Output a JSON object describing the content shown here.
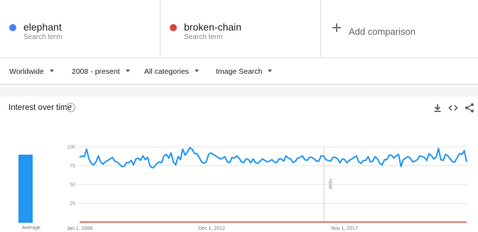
{
  "search_terms": [
    {
      "name": "elephant",
      "subtitle": "Search term",
      "color": "#4285f4"
    },
    {
      "name": "broken-chain",
      "subtitle": "Search term",
      "color": "#db4437"
    }
  ],
  "add_comparison": {
    "label": "Add comparison",
    "icon": "plus-icon"
  },
  "filters": [
    {
      "label": "Worldwide"
    },
    {
      "label": "2008 - present"
    },
    {
      "label": "All categories"
    },
    {
      "label": "Image Search"
    }
  ],
  "card": {
    "title": "Interest over time",
    "help_glyph": "?",
    "tools": [
      "download-icon",
      "embed-icon",
      "share-icon"
    ]
  },
  "average": {
    "label": "Average",
    "elephant_value": 83,
    "broken_chain_value": 0
  },
  "chart_data": {
    "type": "line",
    "title": "Interest over time",
    "x_labels": [
      "Jan 1, 2008",
      "Dec 1, 2012",
      "Nov 1, 2017"
    ],
    "y_ticks": [
      100,
      75,
      50,
      25
    ],
    "ylim": [
      0,
      100
    ],
    "grid": true,
    "annotation": "Note",
    "series": [
      {
        "name": "elephant",
        "color": "#2196f3",
        "values": [
          86,
          88,
          87,
          97,
          84,
          78,
          76,
          80,
          88,
          80,
          77,
          80,
          82,
          84,
          86,
          81,
          80,
          77,
          74,
          74,
          79,
          79,
          82,
          76,
          84,
          85,
          82,
          88,
          83,
          86,
          75,
          72,
          74,
          78,
          80,
          79,
          88,
          90,
          85,
          92,
          80,
          76,
          87,
          83,
          97,
          89,
          93,
          99,
          97,
          91,
          91,
          86,
          80,
          78,
          80,
          90,
          92,
          90,
          88,
          86,
          84,
          85,
          87,
          80,
          79,
          86,
          85,
          88,
          85,
          80,
          79,
          84,
          83,
          79,
          84,
          79,
          78,
          81,
          84,
          82,
          80,
          81,
          83,
          80,
          79,
          84,
          84,
          81,
          88,
          85,
          84,
          79,
          81,
          85,
          86,
          88,
          83,
          82,
          86,
          86,
          84,
          81,
          81,
          88,
          88,
          83,
          82,
          81,
          86,
          86,
          84,
          79,
          84,
          83,
          79,
          82,
          84,
          86,
          88,
          80,
          78,
          82,
          82,
          87,
          80,
          81,
          87,
          84,
          78,
          76,
          83,
          83,
          89,
          89,
          85,
          88,
          90,
          74,
          83,
          85,
          87,
          85,
          80,
          81,
          83,
          88,
          87,
          86,
          82,
          91,
          88,
          84,
          86,
          98,
          83,
          82,
          90,
          88,
          84,
          80,
          80,
          86,
          91,
          90,
          95,
          80
        ]
      },
      {
        "name": "broken-chain",
        "color": "#db4437",
        "values": [
          0,
          0,
          0,
          0,
          0,
          0,
          0,
          0,
          0,
          0,
          0,
          0,
          0,
          0,
          0,
          0,
          0,
          0,
          0,
          0,
          0,
          0,
          0,
          0,
          0,
          0,
          0,
          0,
          0,
          0,
          0,
          0,
          0,
          0,
          0,
          0,
          0,
          0,
          0,
          0,
          0,
          0,
          0,
          0,
          0,
          0,
          0,
          0,
          0,
          0,
          0,
          0,
          0,
          0,
          0,
          0,
          0,
          0,
          0,
          0,
          0,
          0,
          0,
          0,
          0,
          0,
          0,
          0,
          0,
          0,
          0,
          0,
          0,
          0,
          0,
          0,
          0,
          0,
          0,
          0,
          0,
          0,
          0,
          0,
          0,
          0,
          0,
          0,
          0,
          0,
          0,
          0,
          0,
          0,
          0,
          0,
          0,
          0,
          0,
          0,
          0,
          0,
          0,
          0,
          0,
          0,
          0,
          0,
          0,
          0,
          0,
          0,
          0,
          0,
          0,
          0,
          0,
          0,
          0,
          0,
          0,
          0,
          0,
          0,
          0,
          0,
          0,
          0,
          0,
          0,
          0,
          0,
          0,
          0,
          0,
          0,
          0,
          0,
          0,
          0,
          0,
          0,
          0,
          0,
          0,
          0,
          0,
          0,
          0,
          0,
          0,
          0,
          0,
          0,
          0,
          0,
          0,
          0,
          0,
          0,
          0,
          0,
          0,
          0,
          0,
          0
        ]
      }
    ]
  }
}
